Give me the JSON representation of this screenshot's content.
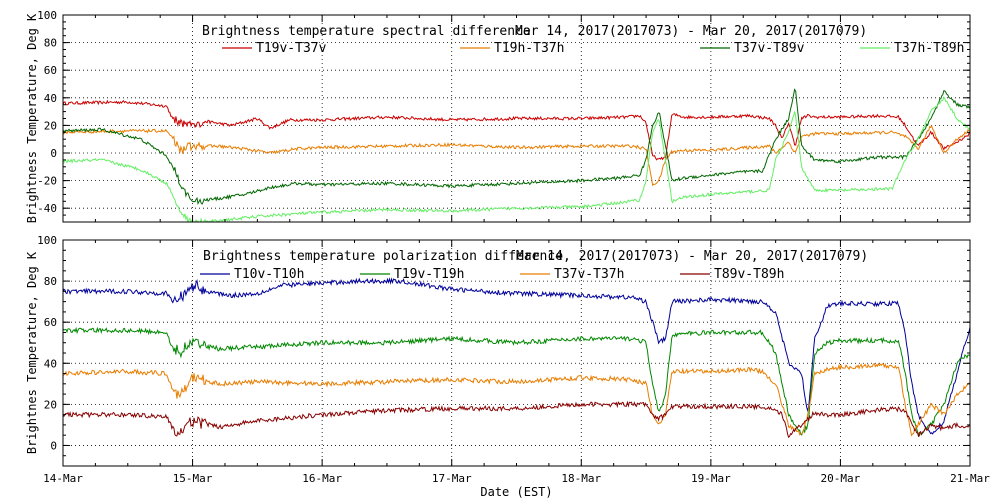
{
  "chart_data": [
    {
      "type": "line",
      "title": "Brightness temperature spectral difference",
      "date_range": "Mar 14, 2017(2017073) - Mar 20, 2017(2017079)",
      "ylabel": "Brightness Temperature, Deg K",
      "xlabel": "",
      "ylim": [
        -50,
        100
      ],
      "yticks": [
        -40,
        -20,
        0,
        20,
        40,
        60,
        80,
        100
      ],
      "xlim": [
        0,
        7
      ],
      "grid": true,
      "legend_position": "top",
      "series": [
        {
          "name": "T19v-T37v",
          "color": "#cc0000",
          "x": [
            0,
            0.5,
            0.7,
            0.8,
            0.85,
            1.0,
            1.1,
            1.3,
            1.5,
            1.6,
            1.75,
            2.0,
            2.5,
            3.0,
            3.5,
            4.0,
            4.35,
            4.45,
            4.5,
            4.55,
            4.6,
            4.65,
            4.7,
            4.75,
            4.8,
            5.0,
            5.3,
            5.45,
            5.5,
            5.55,
            5.6,
            5.65,
            5.7,
            5.75,
            5.8,
            6.0,
            6.3,
            6.45,
            6.5,
            6.6,
            6.7,
            6.8,
            6.9,
            7.0
          ],
          "values": [
            36,
            37,
            35,
            34,
            24,
            20,
            23,
            20,
            25,
            18,
            24,
            24,
            26,
            24,
            25,
            25,
            26,
            27,
            22,
            -2,
            -5,
            -3,
            28,
            27,
            26,
            26,
            27,
            25,
            20,
            10,
            22,
            5,
            25,
            27,
            26,
            26,
            27,
            26,
            20,
            5,
            15,
            3,
            8,
            14
          ]
        },
        {
          "name": "T19h-T37h",
          "color": "#e87d00",
          "x": [
            0,
            0.5,
            0.8,
            0.85,
            0.9,
            1.0,
            1.2,
            1.4,
            1.6,
            1.8,
            2.0,
            2.5,
            3.0,
            3.5,
            4.0,
            4.4,
            4.5,
            4.55,
            4.6,
            4.65,
            4.7,
            4.8,
            5.0,
            5.3,
            5.45,
            5.5,
            5.6,
            5.65,
            5.7,
            5.8,
            6.0,
            6.4,
            6.5,
            6.6,
            6.7,
            6.8,
            6.9,
            7.0
          ],
          "values": [
            15,
            16,
            16,
            10,
            2,
            5,
            5,
            3,
            0,
            3,
            4,
            5,
            6,
            4,
            5,
            5,
            3,
            -23,
            -20,
            -5,
            1,
            2,
            2,
            4,
            5,
            0,
            8,
            0,
            12,
            14,
            14,
            15,
            12,
            3,
            20,
            0,
            10,
            17
          ]
        },
        {
          "name": "T37v-T89v",
          "color": "#006600",
          "x": [
            0,
            0.3,
            0.6,
            0.8,
            0.9,
            0.95,
            1.0,
            1.2,
            1.4,
            1.6,
            1.8,
            2.0,
            2.5,
            3.0,
            3.5,
            4.0,
            4.3,
            4.45,
            4.5,
            4.55,
            4.6,
            4.65,
            4.7,
            4.8,
            5.0,
            5.2,
            5.4,
            5.5,
            5.6,
            5.65,
            5.7,
            5.8,
            6.0,
            6.3,
            6.5,
            6.6,
            6.7,
            6.8,
            6.9,
            7.0
          ],
          "values": [
            16,
            17,
            10,
            -2,
            -20,
            -30,
            -35,
            -33,
            -30,
            -25,
            -22,
            -23,
            -22,
            -24,
            -22,
            -20,
            -18,
            -16,
            -5,
            20,
            30,
            5,
            -20,
            -18,
            -16,
            -14,
            -13,
            10,
            25,
            48,
            5,
            -5,
            -6,
            -3,
            -3,
            10,
            25,
            45,
            35,
            33
          ]
        },
        {
          "name": "T37h-T89h",
          "color": "#66ee66",
          "x": [
            0,
            0.3,
            0.6,
            0.8,
            0.9,
            0.95,
            1.0,
            1.1,
            1.3,
            1.5,
            1.8,
            2.0,
            2.5,
            3.0,
            3.5,
            4.0,
            4.3,
            4.45,
            4.5,
            4.55,
            4.6,
            4.65,
            4.7,
            4.8,
            5.0,
            5.3,
            5.45,
            5.5,
            5.6,
            5.65,
            5.7,
            5.8,
            6.0,
            6.4,
            6.5,
            6.6,
            6.7,
            6.8,
            6.9,
            7.0
          ],
          "values": [
            -6,
            -5,
            -12,
            -22,
            -40,
            -48,
            -50,
            -50,
            -48,
            -46,
            -44,
            -43,
            -41,
            -42,
            -40,
            -39,
            -36,
            -34,
            -20,
            15,
            25,
            -5,
            -35,
            -32,
            -30,
            -28,
            -27,
            -5,
            15,
            30,
            -10,
            -27,
            -27,
            -26,
            -5,
            10,
            30,
            40,
            25,
            17
          ]
        }
      ]
    },
    {
      "type": "line",
      "title": "Brightness temperature polarization difference",
      "date_range": "Mar 14, 2017(2017073) - Mar 20, 2017(2017079)",
      "ylabel": "Brightnes Temperature, Deg K",
      "xlabel": "Date (EST)",
      "ylim": [
        -10,
        100
      ],
      "yticks": [
        0,
        20,
        40,
        60,
        80,
        100
      ],
      "xlim": [
        0,
        7
      ],
      "xticks": [
        "14-Mar",
        "15-Mar",
        "16-Mar",
        "17-Mar",
        "18-Mar",
        "19-Mar",
        "20-Mar",
        "21-Mar"
      ],
      "grid": true,
      "legend_position": "top",
      "series": [
        {
          "name": "T10v-T10h",
          "color": "#000099",
          "x": [
            0,
            0.5,
            0.8,
            0.85,
            0.9,
            1.0,
            1.1,
            1.3,
            1.5,
            1.7,
            2.0,
            2.3,
            2.6,
            3.0,
            3.5,
            4.0,
            4.4,
            4.5,
            4.55,
            4.6,
            4.65,
            4.7,
            5.0,
            5.4,
            5.5,
            5.6,
            5.7,
            5.75,
            5.8,
            5.9,
            6.0,
            6.45,
            6.5,
            6.55,
            6.6,
            6.7,
            6.8,
            6.9,
            7.0
          ],
          "values": [
            75,
            75,
            74,
            70,
            72,
            78,
            75,
            73,
            74,
            78,
            79,
            80,
            80,
            76,
            74,
            73,
            72,
            70,
            60,
            50,
            52,
            70,
            71,
            70,
            65,
            40,
            35,
            15,
            52,
            68,
            69,
            69,
            55,
            30,
            15,
            5,
            12,
            35,
            58
          ]
        },
        {
          "name": "T19v-T19h",
          "color": "#008800",
          "x": [
            0,
            0.5,
            0.8,
            0.85,
            0.9,
            1.0,
            1.2,
            1.5,
            2.0,
            2.5,
            3.0,
            3.5,
            4.0,
            4.4,
            4.5,
            4.55,
            4.6,
            4.65,
            4.7,
            5.0,
            5.4,
            5.5,
            5.6,
            5.7,
            5.75,
            5.8,
            5.9,
            6.0,
            6.45,
            6.5,
            6.55,
            6.6,
            6.7,
            6.8,
            6.9,
            7.0
          ],
          "values": [
            56,
            56,
            55,
            47,
            45,
            50,
            47,
            48,
            50,
            50,
            52,
            50,
            52,
            52,
            50,
            30,
            15,
            25,
            54,
            55,
            55,
            45,
            15,
            5,
            10,
            45,
            50,
            51,
            51,
            35,
            15,
            5,
            10,
            20,
            40,
            45
          ]
        },
        {
          "name": "T37v-T37h",
          "color": "#e87d00",
          "x": [
            0,
            0.5,
            0.8,
            0.85,
            0.9,
            1.0,
            1.2,
            1.5,
            2.0,
            2.5,
            3.0,
            3.5,
            4.0,
            4.4,
            4.5,
            4.55,
            4.6,
            4.65,
            4.7,
            5.0,
            5.3,
            5.4,
            5.5,
            5.6,
            5.7,
            5.75,
            5.8,
            5.9,
            6.0,
            6.3,
            6.45,
            6.5,
            6.55,
            6.6,
            6.7,
            6.8,
            6.9,
            7.0
          ],
          "values": [
            35,
            36,
            35,
            27,
            25,
            33,
            30,
            31,
            30,
            31,
            32,
            31,
            33,
            32,
            30,
            15,
            10,
            15,
            36,
            36,
            37,
            36,
            30,
            10,
            5,
            15,
            35,
            37,
            38,
            39,
            38,
            20,
            5,
            10,
            20,
            15,
            25,
            30
          ]
        },
        {
          "name": "T89v-T89h",
          "color": "#880000",
          "x": [
            0,
            0.5,
            0.8,
            0.85,
            0.9,
            1.0,
            1.2,
            1.5,
            2.0,
            2.5,
            3.0,
            3.5,
            4.0,
            4.5,
            4.55,
            4.6,
            4.65,
            4.7,
            5.0,
            5.3,
            5.45,
            5.55,
            5.6,
            5.7,
            5.8,
            5.9,
            6.0,
            6.4,
            6.5,
            6.55,
            6.6,
            6.7,
            6.8,
            6.9,
            7.0
          ],
          "values": [
            15,
            15,
            14,
            8,
            6,
            12,
            9,
            12,
            15,
            17,
            18,
            18,
            20,
            20,
            15,
            13,
            15,
            19,
            19,
            19,
            18,
            15,
            5,
            10,
            16,
            15,
            15,
            18,
            17,
            10,
            5,
            10,
            8,
            10,
            9
          ]
        }
      ]
    }
  ]
}
